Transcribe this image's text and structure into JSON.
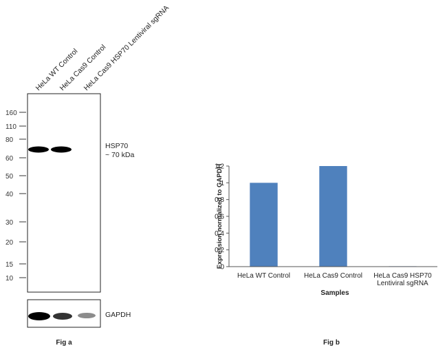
{
  "figure_a": {
    "lanes": [
      "HeLa WT Control",
      "HeLa Cas9 Control",
      "HeLa Cas9 HSP70 Lentiviral sgRNA"
    ],
    "ladder": [
      "160",
      "110",
      "80",
      "60",
      "50",
      "40",
      "30",
      "20",
      "15",
      "10"
    ],
    "target_label": "HSP70",
    "target_size": "~ 70 kDa",
    "loading_label": "GAPDH",
    "target_band_intensity": [
      1.0,
      1.0,
      0.0
    ],
    "loading_band_intensity": [
      1.0,
      0.8,
      0.45
    ],
    "caption": "Fig a"
  },
  "chart_data": {
    "type": "bar",
    "categories": [
      "HeLa WT Control",
      "HeLa Cas9 Control",
      "HeLa Cas9 HSP70 Lentiviral sgRNA"
    ],
    "category_lines": [
      [
        "HeLa WT Control"
      ],
      [
        "HeLa Cas9 Control"
      ],
      [
        "HeLa Cas9 HSP70",
        "Lentiviral sgRNA"
      ]
    ],
    "values": [
      1.0,
      1.2,
      0.005
    ],
    "title": "",
    "xlabel": "Samples",
    "ylabel": "Expression  normalized to GAPDH",
    "ylim": [
      0,
      1.2
    ],
    "yticks": [
      0,
      0.2,
      0.4,
      0.6,
      0.8,
      1,
      1.2
    ],
    "ytick_labels": [
      "0",
      "0.2",
      "0.4",
      "0.6",
      "0.8",
      "1",
      "1.2"
    ],
    "grid": false,
    "bar_color": "#4f81bd",
    "caption": "Fig b"
  }
}
